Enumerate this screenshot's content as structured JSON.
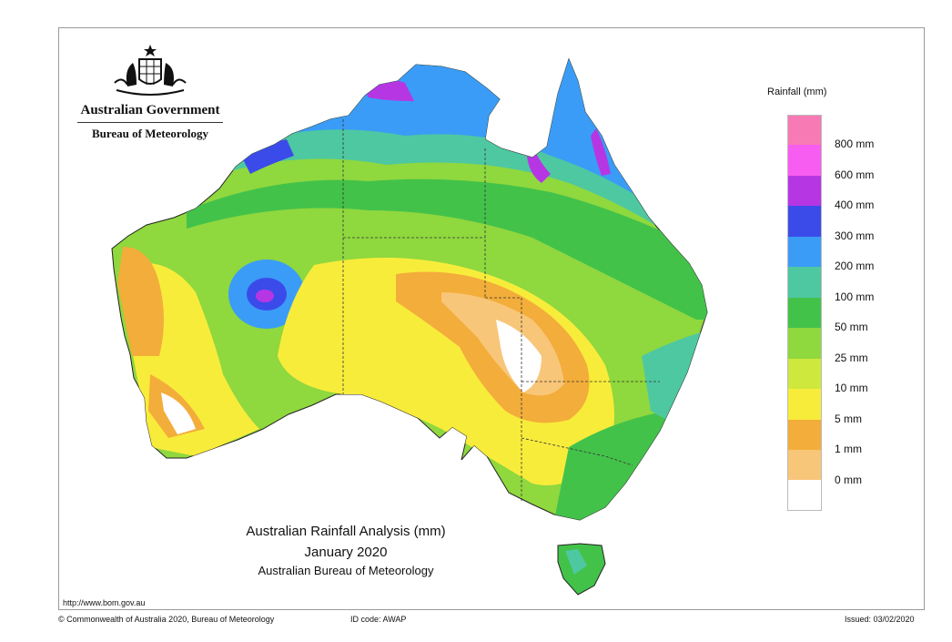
{
  "header": {
    "government": "Australian Government",
    "bureau": "Bureau of Meteorology",
    "crest_icon": "coat-of-arms-icon"
  },
  "map": {
    "title": "Australian Rainfall Analysis (mm)",
    "period": "January 2020",
    "source": "Australian Bureau of Meteorology",
    "url": "http://www.bom.gov.au"
  },
  "legend": {
    "title": "Rainfall (mm)",
    "colors": [
      "#f87ab4",
      "#f65df0",
      "#b736e3",
      "#3b4bea",
      "#3a9cf6",
      "#4ec8a1",
      "#43c24a",
      "#8fd83e",
      "#cfe83e",
      "#f8ec3b",
      "#f3ad3a",
      "#f8c679",
      "#ffffff"
    ],
    "labels": [
      "800 mm",
      "600 mm",
      "400 mm",
      "300 mm",
      "200 mm",
      "100 mm",
      "50 mm",
      "25 mm",
      "10 mm",
      "5 mm",
      "1 mm",
      "0 mm"
    ]
  },
  "footer": {
    "copyright": "© Commonwealth of Australia 2020, Bureau of Meteorology",
    "id_code": "ID code: AWAP",
    "issued": "Issued: 03/02/2020"
  }
}
